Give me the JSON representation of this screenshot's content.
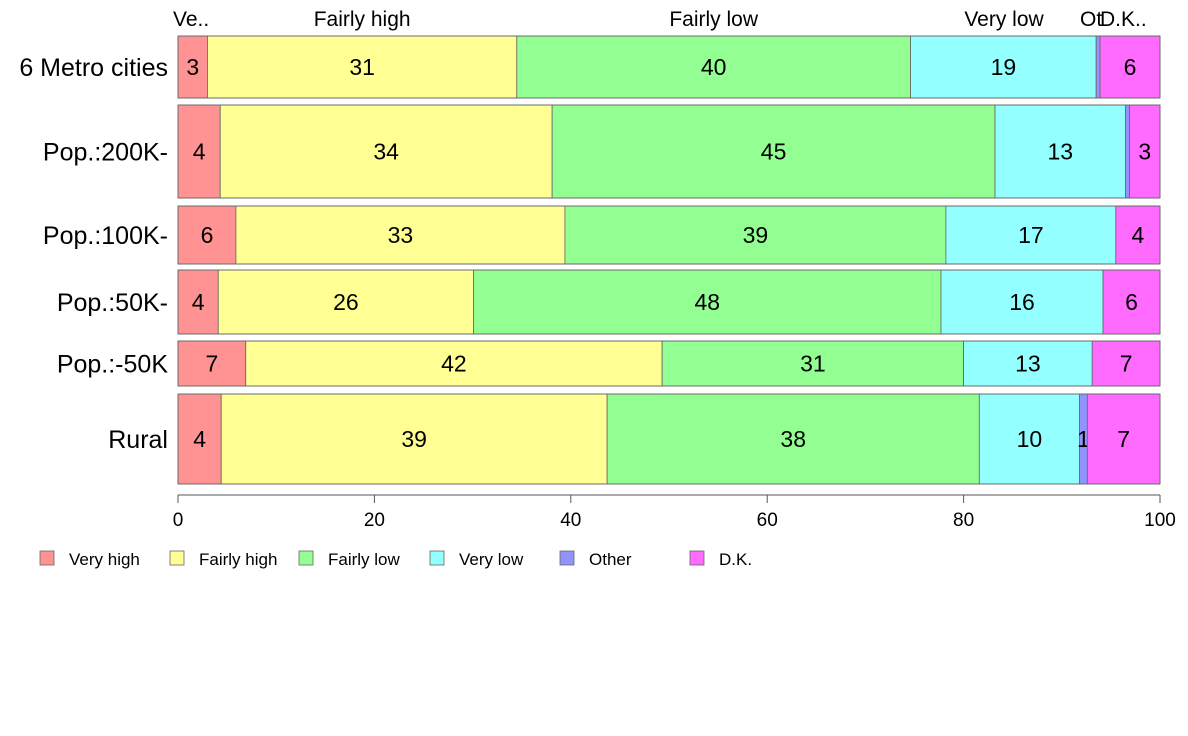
{
  "chart_data": {
    "type": "bar",
    "orientation": "horizontal",
    "stacked": true,
    "title": "",
    "xlabel": "",
    "ylabel": "",
    "xlim": [
      0,
      100
    ],
    "x_ticks": [
      0,
      20,
      40,
      60,
      80,
      100
    ],
    "x_tick_labels": [
      "0",
      "20",
      "40",
      "60",
      "80",
      "100"
    ],
    "grid": false,
    "legend_position": "bottom-left",
    "categories": [
      "6 Metro cities",
      "Pop.:200K-",
      "Pop.:100K-",
      "Pop.:50K-",
      "Pop.:-50K",
      "Rural"
    ],
    "top_labels": [
      "Ve..",
      "Fairly high",
      "Fairly low",
      "Very low",
      "Ot",
      "D.K.."
    ],
    "series": [
      {
        "name": "Very high",
        "color": "#ff9393",
        "values": [
          3,
          4.3,
          5.9,
          4.1,
          6.9,
          4.4
        ],
        "labels": [
          "3",
          "4",
          "6",
          "4",
          "7",
          "4"
        ]
      },
      {
        "name": "Fairly high",
        "color": "#ffff93",
        "values": [
          31.5,
          33.8,
          33.5,
          26,
          42.4,
          39.3
        ],
        "labels": [
          "31",
          "34",
          "33",
          "26",
          "42",
          "39"
        ]
      },
      {
        "name": "Fairly low",
        "color": "#93ff93",
        "values": [
          40.1,
          45.1,
          38.8,
          47.6,
          30.7,
          37.9
        ],
        "labels": [
          "40",
          "45",
          "39",
          "48",
          "31",
          "38"
        ]
      },
      {
        "name": "Very low",
        "color": "#93ffff",
        "values": [
          18.9,
          13.3,
          17.3,
          16.5,
          13.1,
          10.2
        ],
        "labels": [
          "19",
          "13",
          "17",
          "16",
          "13",
          "10"
        ]
      },
      {
        "name": "Other",
        "color": "#9393ff",
        "values": [
          0.4,
          0.4,
          0,
          0,
          0,
          0.8
        ],
        "labels": [
          "",
          "",
          "",
          "",
          "",
          "1"
        ]
      },
      {
        "name": "D.K.",
        "color": "#ff6bff",
        "values": [
          6.1,
          3.1,
          4.5,
          5.8,
          6.9,
          7.4
        ],
        "labels": [
          "6",
          "3",
          "4",
          "6",
          "7",
          "7"
        ]
      }
    ]
  }
}
